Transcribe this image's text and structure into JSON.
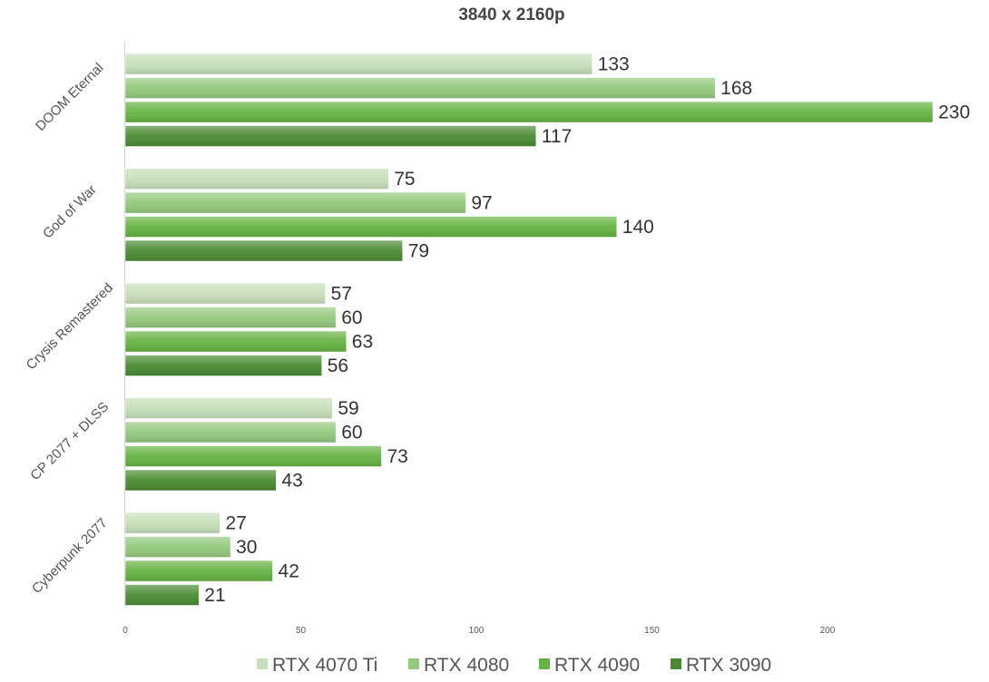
{
  "chart_data": {
    "type": "bar",
    "orientation": "horizontal",
    "title": "3840 x 2160p",
    "categories": [
      "DOOM Eternal",
      "God of War",
      "Crysis Remastered",
      "CP 2077 + DLSS",
      "Cyberpunk 2077"
    ],
    "series": [
      {
        "name": "RTX 4070 Ti",
        "color": "#c6dfba",
        "values": [
          133,
          75,
          57,
          59,
          27
        ]
      },
      {
        "name": "RTX 4080",
        "color": "#93c97d",
        "values": [
          168,
          97,
          60,
          60,
          30
        ]
      },
      {
        "name": "RTX 4090",
        "color": "#66b342",
        "values": [
          230,
          140,
          63,
          73,
          42
        ]
      },
      {
        "name": "RTX 3090",
        "color": "#4a8a32",
        "values": [
          117,
          79,
          56,
          43,
          21
        ]
      }
    ],
    "x_ticks": [
      "0",
      "50",
      "100",
      "150",
      "200"
    ],
    "xlim": [
      0,
      230
    ],
    "grid": false,
    "legend_position": "bottom"
  }
}
